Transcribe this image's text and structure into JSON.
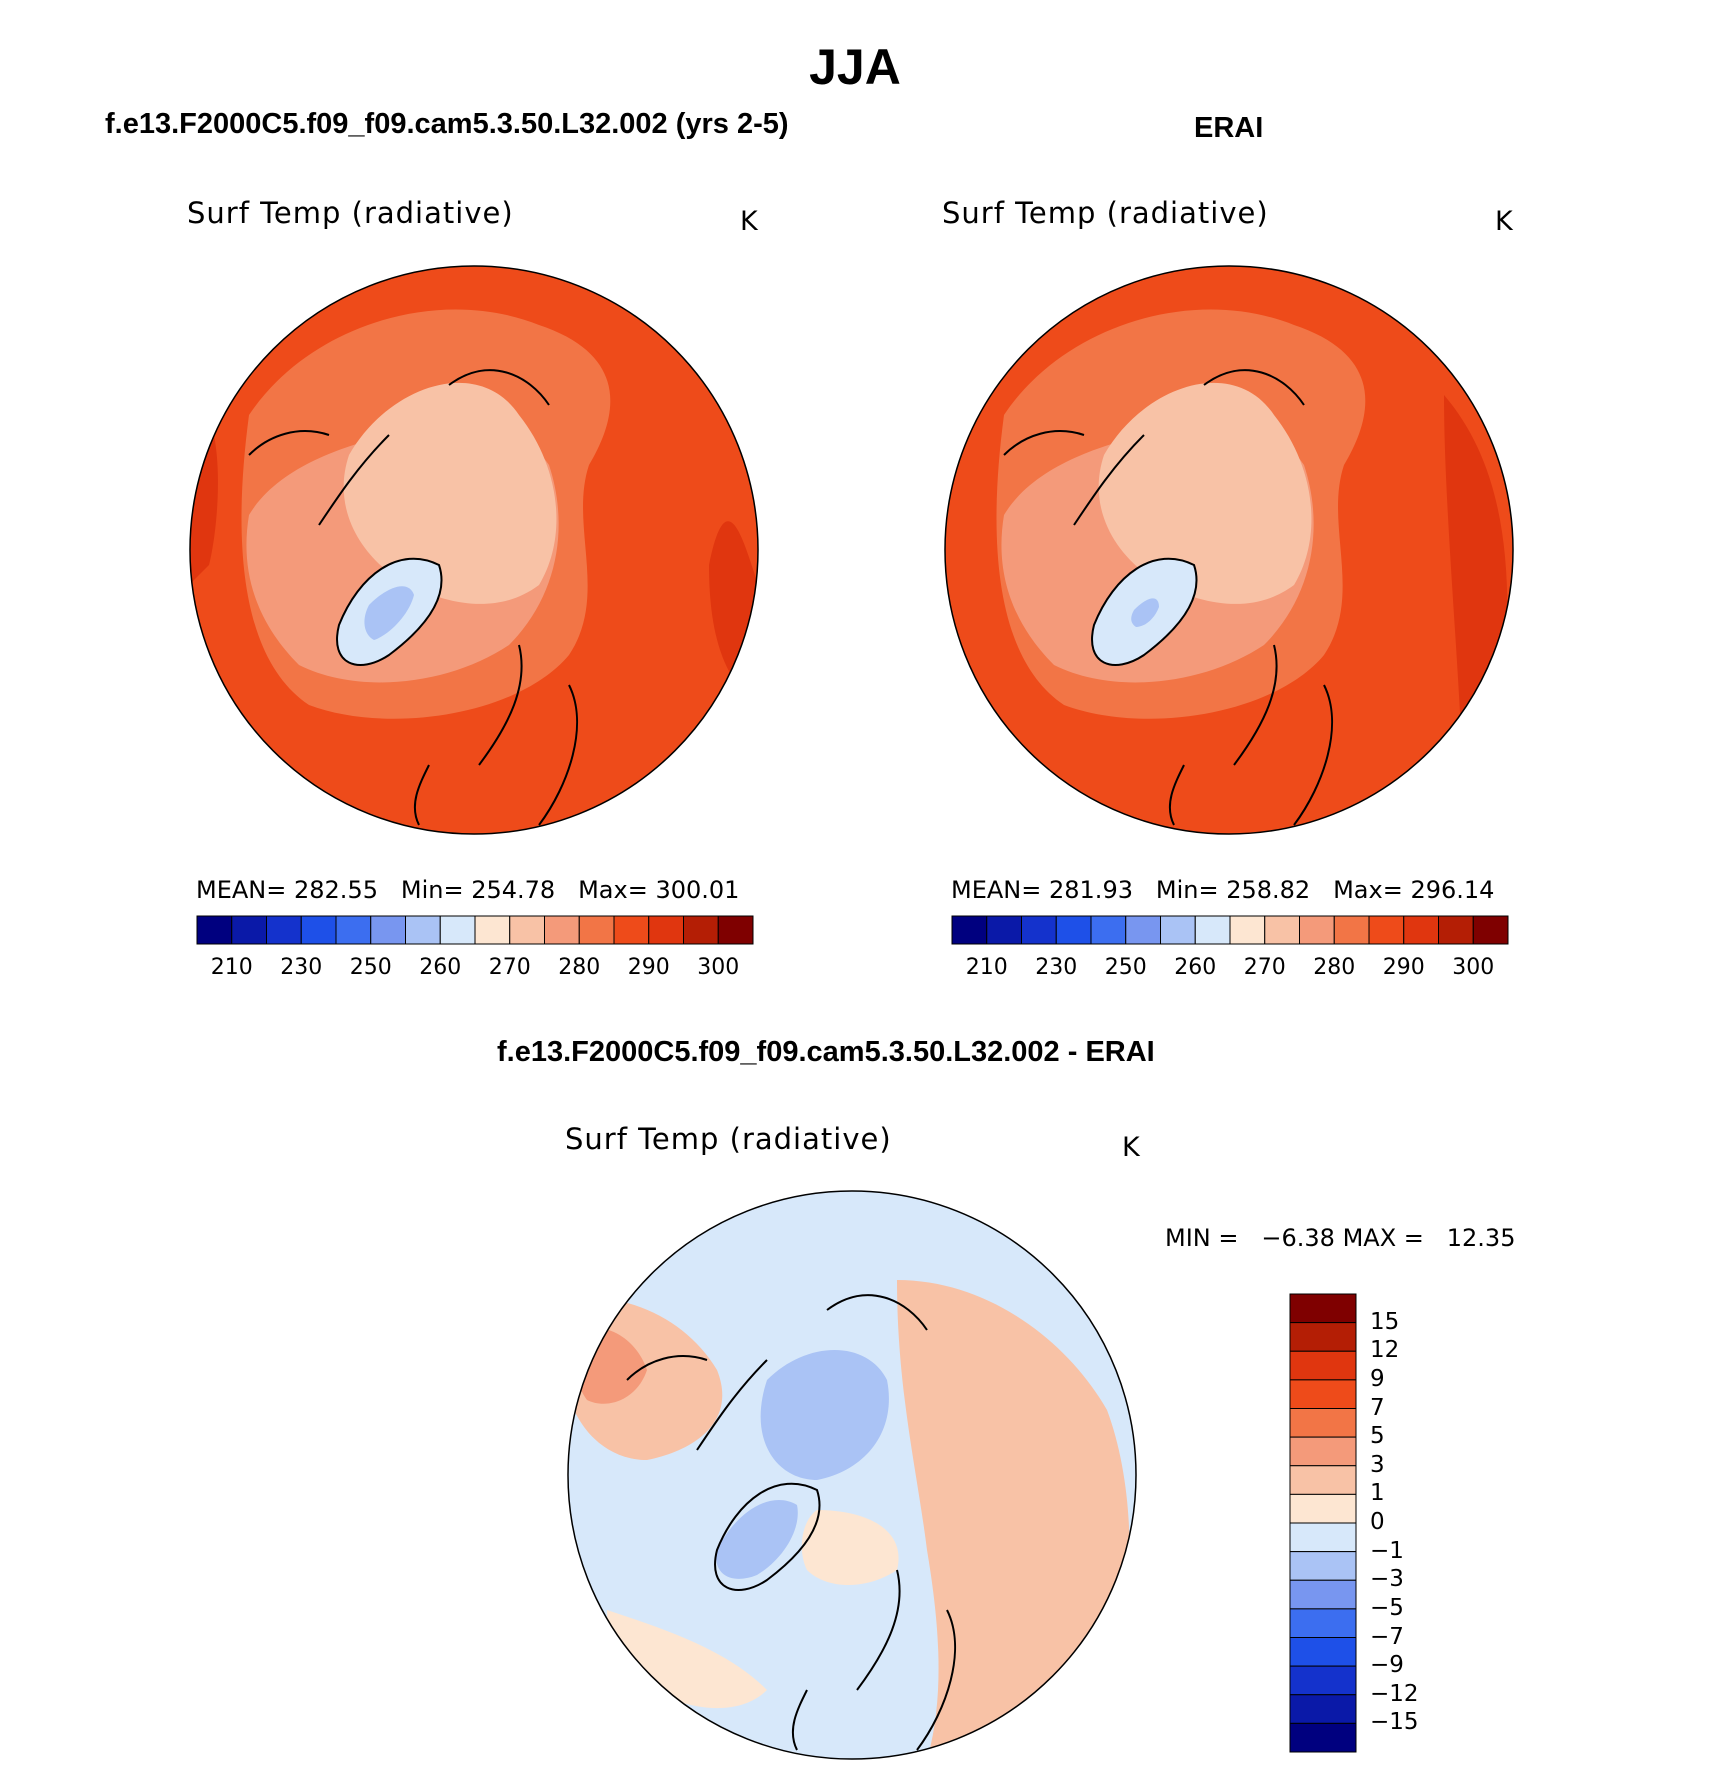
{
  "season": "JJA",
  "panels": {
    "model": {
      "case_title": "f.e13.F2000C5.f09_f09.cam5.3.50.L32.002 (yrs 2-5)",
      "variable": "Surf Temp (radiative)",
      "unit": "K",
      "stats": {
        "mean_label": "MEAN=",
        "mean": "282.55",
        "min_label": "Min=",
        "min": "254.78",
        "max_label": "Max=",
        "max": "300.01"
      }
    },
    "obs": {
      "case_title": "ERAI",
      "variable": "Surf Temp (radiative)",
      "unit": "K",
      "stats": {
        "mean_label": "MEAN=",
        "mean": "281.93",
        "min_label": "Min=",
        "min": "258.82",
        "max_label": "Max=",
        "max": "296.14"
      }
    },
    "diff": {
      "case_title": "f.e13.F2000C5.f09_f09.cam5.3.50.L32.002 - ERAI",
      "variable": "Surf Temp (radiative)",
      "unit": "K",
      "stats": {
        "min_label": "MIN =",
        "min": "−6.38",
        "max_label": "MAX =",
        "max": "12.35"
      }
    }
  },
  "colorbars": {
    "abs_colors": [
      "#00007f",
      "#0a19a8",
      "#1432cc",
      "#1e50e8",
      "#3c6ef0",
      "#7896f0",
      "#aac3f5",
      "#d7e8fa",
      "#fde6d2",
      "#f8c2a6",
      "#f49a7a",
      "#f27546",
      "#ee4b1a",
      "#e0360f",
      "#b41e05",
      "#7f0000"
    ],
    "abs_labels": [
      "210",
      "230",
      "250",
      "260",
      "270",
      "280",
      "290",
      "300"
    ],
    "diff_colors": [
      "#00007f",
      "#0a19a8",
      "#1432cc",
      "#1e50e8",
      "#3c6ef0",
      "#7896f0",
      "#aac3f5",
      "#d7e8fa",
      "#fde6d2",
      "#f8c2a6",
      "#f49a7a",
      "#f27546",
      "#ee4b1a",
      "#e0360f",
      "#b41e05",
      "#7f0000"
    ],
    "diff_labels": [
      "15",
      "12",
      "9",
      "7",
      "5",
      "3",
      "1",
      "0",
      "−1",
      "−3",
      "−5",
      "−7",
      "−9",
      "−12",
      "−15"
    ]
  },
  "map_colors": {
    "model": {
      "outer": "#ee4b1a",
      "ring": "#f27546",
      "mid": "#f49a7a",
      "arctic": "#f8c2a6",
      "greenland": "#d7e8fa",
      "greenland_core": "#aac3f5",
      "hot": "#e0360f"
    },
    "obs": {
      "outer": "#ee4b1a",
      "ring": "#f27546",
      "mid": "#f49a7a",
      "arctic": "#f8c2a6",
      "greenland": "#d7e8fa",
      "greenland_core": "#aac3f5",
      "hot": "#e0360f"
    },
    "diff": {
      "base": "#d7e8fa",
      "warm": "#f8c2a6",
      "cool": "#aac3f5",
      "warm2": "#f49a7a",
      "pale": "#fde6d2"
    }
  }
}
